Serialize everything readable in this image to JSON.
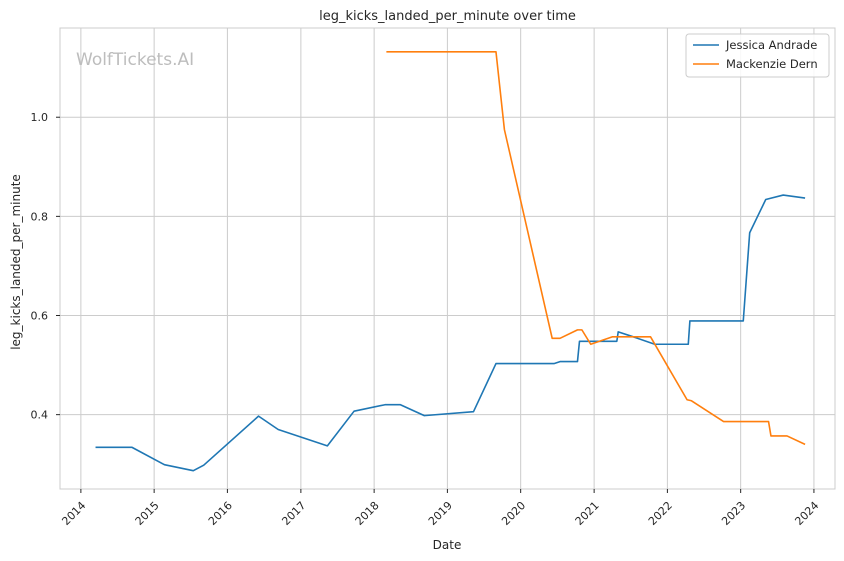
{
  "chart_data": {
    "type": "line",
    "title": "leg_kicks_landed_per_minute over time",
    "xlabel": "Date",
    "ylabel": "leg_kicks_landed_per_minute",
    "watermark": "WolfTickets.AI",
    "xlim": [
      "2013-09-19",
      "2024-04-15"
    ],
    "ylim": [
      0.25,
      1.18
    ],
    "x_ticks": [
      "2014",
      "2015",
      "2016",
      "2017",
      "2018",
      "2019",
      "2020",
      "2021",
      "2022",
      "2023",
      "2024"
    ],
    "y_ticks": [
      "0.4",
      "0.6",
      "0.8",
      "1.0"
    ],
    "y_tick_values": [
      0.4,
      0.6,
      0.8,
      1.0
    ],
    "grid": true,
    "legend_position": "top-right",
    "series": [
      {
        "name": "Jessica Andrade",
        "color": "#1f77b4",
        "points": [
          [
            "2014-03-15",
            0.334
          ],
          [
            "2014-09-13",
            0.334
          ],
          [
            "2015-02-21",
            0.299
          ],
          [
            "2015-07-15",
            0.287
          ],
          [
            "2015-09-05",
            0.298
          ],
          [
            "2016-06-04",
            0.397
          ],
          [
            "2016-09-10",
            0.37
          ],
          [
            "2017-05-13",
            0.337
          ],
          [
            "2017-09-23",
            0.407
          ],
          [
            "2018-02-24",
            0.42
          ],
          [
            "2018-05-12",
            0.42
          ],
          [
            "2018-09-08",
            0.398
          ],
          [
            "2019-05-11",
            0.406
          ],
          [
            "2019-08-31",
            0.503
          ],
          [
            "2020-06-15",
            0.503
          ],
          [
            "2020-07-15",
            0.507
          ],
          [
            "2020-10-10",
            0.507
          ],
          [
            "2020-10-20",
            0.548
          ],
          [
            "2021-03-01",
            0.548
          ],
          [
            "2021-04-24",
            0.548
          ],
          [
            "2021-05-01",
            0.567
          ],
          [
            "2021-07-15",
            0.557
          ],
          [
            "2021-10-30",
            0.542
          ],
          [
            "2022-04-15",
            0.542
          ],
          [
            "2022-04-23",
            0.589
          ],
          [
            "2023-01-14",
            0.589
          ],
          [
            "2023-02-15",
            0.767
          ],
          [
            "2023-05-06",
            0.834
          ],
          [
            "2023-08-01",
            0.843
          ],
          [
            "2023-11-18",
            0.837
          ]
        ]
      },
      {
        "name": "Mackenzie Dern",
        "color": "#ff7f0e",
        "points": [
          [
            "2018-03-03",
            1.132
          ],
          [
            "2019-08-31",
            1.132
          ],
          [
            "2019-10-12",
            0.975
          ],
          [
            "2020-06-06",
            0.554
          ],
          [
            "2020-07-15",
            0.554
          ],
          [
            "2020-10-10",
            0.571
          ],
          [
            "2020-11-01",
            0.571
          ],
          [
            "2020-12-15",
            0.542
          ],
          [
            "2021-04-01",
            0.557
          ],
          [
            "2021-10-09",
            0.557
          ],
          [
            "2022-04-09",
            0.43
          ],
          [
            "2022-05-01",
            0.428
          ],
          [
            "2022-10-08",
            0.386
          ],
          [
            "2023-05-20",
            0.386
          ],
          [
            "2023-06-01",
            0.357
          ],
          [
            "2023-08-20",
            0.357
          ],
          [
            "2023-11-18",
            0.34
          ]
        ]
      }
    ]
  }
}
